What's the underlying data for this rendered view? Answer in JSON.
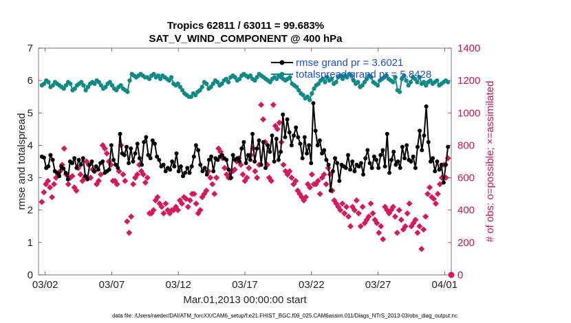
{
  "chart_data": {
    "type": "line",
    "title_line1": "Tropics 62811 / 63011 = 99.683%",
    "title_line2": "SAT_V_WIND_COMPONENT @ 400 hPa",
    "xlabel": "Mar.01,2013 00:00:00 start",
    "ylabel_left": "rmse and totalspread",
    "ylabel_right": "# of obs: o=possible; ×=assimilated",
    "xlim": [
      0.5,
      31.5
    ],
    "ylim_left": [
      0,
      7
    ],
    "ylim_right": [
      0,
      1400
    ],
    "x_ticks": [
      1,
      6,
      11,
      16,
      21,
      26,
      31
    ],
    "x_tick_labels": [
      "03/02",
      "03/07",
      "03/12",
      "03/17",
      "03/22",
      "03/27",
      "04/01"
    ],
    "y_ticks_left": [
      "0",
      "1",
      "2",
      "3",
      "4",
      "5",
      "6",
      "7"
    ],
    "y_ticks_right": [
      "0",
      "200",
      "400",
      "600",
      "800",
      "1000",
      "1200",
      "1400"
    ],
    "legend": [
      "rmse grand pr = 3.6021",
      "totalspread grand pr = 5.8428"
    ],
    "footnote": "data file: /Users/raeder/DAI/ATM_forcXX/CAM6_setup/f.e21.FHIST_BGC.f09_025.CAM6assim.011/Diags_NTrS_2013-03/obs_diag_output.nc",
    "colors": {
      "rmse": "#000000",
      "spread": "#0f8a84",
      "obs": "#d6195e",
      "legend_text": "#1a4fd6"
    },
    "series": [
      {
        "name": "rmse",
        "axis": "left",
        "values": [
          3.65,
          3.62,
          3.3,
          3.35,
          3.7,
          3.55,
          3.2,
          3.15,
          3.05,
          3.35,
          3.28,
          3.15,
          2.95,
          3.5,
          3.45,
          3.6,
          3.3,
          3.55,
          3.4,
          3.6,
          3.05,
          2.95,
          3.4,
          3.5,
          3.2,
          3.35,
          3.25,
          3.45,
          3.5,
          3.15,
          3.2,
          3.25,
          4.0,
          3.55,
          3.4,
          3.3,
          4.35,
          3.75,
          3.7,
          3.95,
          3.45,
          3.9,
          3.5,
          3.75,
          4.05,
          3.6,
          3.4,
          4.1,
          4.25,
          3.7,
          3.6,
          4.15,
          4.05,
          3.65,
          3.55,
          3.35,
          3.4,
          3.2,
          3.3,
          3.25,
          3.5,
          3.35,
          3.75,
          3.2,
          3.35,
          3.05,
          3.15,
          3.3,
          3.15,
          3.35,
          3.65,
          4.0,
          3.85,
          3.4,
          3.2,
          3.3,
          3.1,
          3.55,
          3.65,
          3.2,
          3.6,
          3.55,
          3.65,
          3.7,
          3.6,
          3.55,
          3.25,
          3.0,
          3.7,
          3.55,
          3.6,
          3.5,
          3.9,
          4.1,
          3.45,
          3.7,
          3.55,
          4.35,
          3.5,
          3.9,
          4.15,
          3.4,
          4.1,
          3.3,
          4.0,
          3.8,
          4.3,
          3.5,
          4.2,
          3.55,
          3.8,
          4.95,
          4.25,
          4.8,
          4.4,
          4.0,
          4.3,
          4.55,
          4.25,
          4.05,
          3.6,
          4.25,
          3.75,
          4.0,
          3.45,
          5.3,
          4.45,
          4.0,
          4.15,
          3.75,
          3.85,
          3.55,
          3.4,
          2.6,
          3.2,
          3.6,
          3.45,
          2.9,
          3.4,
          3.35,
          3.3,
          3.7,
          3.25,
          3.5,
          3.2,
          3.4,
          3.35,
          3.45,
          3.1,
          3.6,
          3.85,
          3.45,
          3.3,
          3.65,
          3.55,
          3.3,
          3.7,
          3.85,
          3.35,
          4.35,
          3.15,
          3.55,
          3.8,
          3.4,
          3.5,
          3.3,
          3.95,
          3.6,
          4.0,
          3.55,
          3.5,
          3.65,
          3.3,
          3.95,
          4.45,
          3.85,
          4.3,
          5.2,
          4.1,
          3.5,
          3.6,
          3.2,
          3.5,
          3.25,
          3.4,
          2.85,
          3.4,
          3.95
        ],
        "marker": "asterisk"
      },
      {
        "name": "totalspread",
        "axis": "left",
        "values": [
          5.85,
          5.9,
          6.0,
          5.95,
          5.8,
          5.85,
          5.95,
          5.9,
          5.85,
          5.8,
          5.75,
          5.85,
          5.95,
          5.9,
          5.7,
          5.75,
          5.85,
          5.9,
          5.95,
          5.85,
          5.7,
          5.8,
          5.9,
          5.95,
          5.9,
          6.0,
          5.95,
          5.85,
          5.75,
          5.8,
          5.9,
          5.95,
          5.85,
          5.75,
          5.7,
          5.8,
          5.85,
          5.75,
          5.7,
          5.65,
          6.0,
          6.2,
          6.15,
          6.1,
          6.15,
          6.2,
          6.15,
          6.1,
          6.1,
          6.05,
          6.15,
          6.2,
          6.1,
          6.15,
          6.05,
          6.15,
          6.1,
          6.05,
          6.0,
          6.1,
          5.9,
          5.85,
          5.9,
          5.8,
          5.7,
          5.6,
          5.55,
          5.5,
          5.5,
          5.6,
          5.55,
          5.65,
          5.7,
          5.8,
          5.95,
          5.9,
          5.75,
          5.8,
          5.9,
          6.0,
          5.95,
          5.85,
          5.9,
          6.0,
          6.05,
          5.95,
          6.1,
          6.15,
          6.1,
          6.0,
          6.05,
          6.15,
          6.2,
          6.15,
          6.1,
          6.15,
          6.05,
          6.0,
          6.1,
          6.2,
          6.15,
          6.1,
          6.05,
          6.0,
          5.95,
          6.05,
          6.1,
          6.05,
          6.15,
          6.1,
          6.05,
          6.0,
          6.05,
          6.1,
          5.9,
          5.85,
          5.8,
          5.7,
          5.6,
          5.55,
          5.45,
          5.5,
          5.4,
          5.6,
          5.75,
          5.85,
          5.9,
          6.0,
          6.05,
          5.95,
          6.1,
          6.0,
          6.05,
          5.9,
          5.95,
          6.1,
          6.15,
          6.05,
          6.15,
          6.1,
          6.2,
          6.15,
          6.0,
          5.9,
          5.95,
          5.8,
          5.85,
          5.95,
          6.05,
          6.15,
          6.1,
          5.95,
          5.9,
          5.85,
          6.0,
          6.05,
          6.1,
          6.15,
          6.05,
          6.0,
          5.95,
          6.1,
          5.7,
          5.65,
          6.05,
          6.15,
          6.0,
          5.85,
          5.95,
          6.1,
          6.05,
          5.95,
          6.1,
          5.9,
          5.95,
          5.85,
          5.95,
          6.0,
          5.9,
          5.95,
          6.0,
          5.85,
          5.9,
          5.95,
          6.0,
          5.95
        ],
        "marker": "circle-filled"
      },
      {
        "name": "obs_assimilated",
        "axis": "right",
        "values": [
          450,
          510,
          560,
          580,
          540,
          480,
          560,
          600,
          620,
          640,
          680,
          780,
          620,
          560,
          600,
          610,
          540,
          520,
          660,
          620,
          580,
          600,
          700,
          680,
          600,
          650,
          640,
          560,
          580,
          620,
          800,
          780,
          750,
          700,
          680,
          580,
          580,
          560,
          640,
          800,
          620,
          580,
          330,
          260,
          360,
          560,
          600,
          620,
          680,
          640,
          620,
          570,
          600,
          380,
          380,
          400,
          460,
          480,
          440,
          420,
          380,
          440,
          400,
          380,
          400,
          400,
          420,
          400,
          460,
          440,
          480,
          470,
          420,
          460,
          500,
          500,
          440,
          380,
          400,
          480,
          500,
          520,
          640,
          600,
          560,
          500,
          600,
          780,
          760,
          720,
          660,
          620,
          600,
          600,
          640,
          650,
          700,
          720,
          680,
          620,
          580,
          600,
          660,
          740,
          780,
          640,
          600,
          680,
          1050,
          960,
          820,
          680,
          600,
          580,
          1050,
          920,
          900,
          940,
          820,
          680,
          640,
          620,
          640,
          600,
          560,
          580,
          520,
          500,
          480,
          460,
          480,
          560,
          540,
          620,
          560,
          560,
          580,
          500,
          600,
          620,
          560,
          660,
          620,
          520,
          460,
          440,
          420,
          400,
          440,
          380,
          420,
          360,
          300,
          420,
          400,
          460,
          380,
          300,
          420,
          320,
          340,
          360,
          440,
          380,
          340,
          320,
          260,
          300,
          220,
          420,
          400,
          380,
          400,
          420,
          360,
          260,
          400,
          340,
          280,
          300,
          380,
          440,
          300,
          320,
          340,
          260,
          300,
          160,
          280,
          360,
          500,
          540,
          480,
          470,
          440,
          500,
          560,
          600,
          680,
          600,
          720
        ],
        "marker": "x"
      },
      {
        "name": "obs_possible",
        "axis": "right",
        "values": [
          0
        ],
        "marker": "circle-open"
      }
    ]
  }
}
